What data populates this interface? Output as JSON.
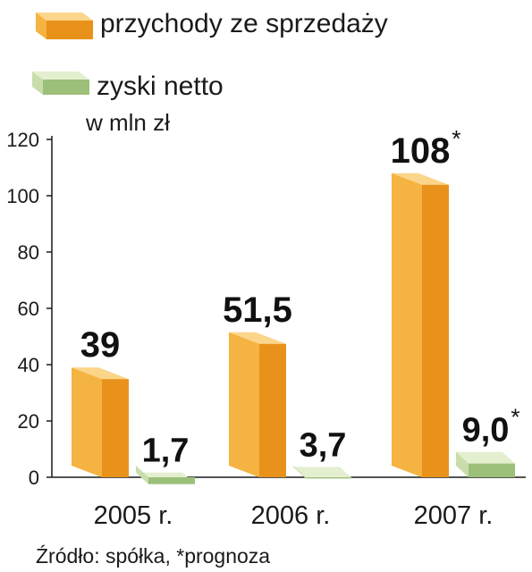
{
  "legend": [
    {
      "label": "przychody ze sprzedaży",
      "colors": {
        "top": "#fbd58a",
        "front": "#f5b342",
        "side": "#e8921c"
      }
    },
    {
      "label": "zyski netto",
      "colors": {
        "top": "#e4efd0",
        "front": "#c9ddaa",
        "side": "#9cbf7a"
      }
    }
  ],
  "unit_label": "w mln zł",
  "source": "Źródło: spółka, *prognoza",
  "chart_data": {
    "type": "bar",
    "categories": [
      "2005 r.",
      "2006 r.",
      "2007 r."
    ],
    "series": [
      {
        "name": "przychody ze sprzedaży",
        "values": [
          39,
          51.5,
          108
        ],
        "labels": [
          "39",
          "51,5",
          "108"
        ],
        "forecast": [
          false,
          false,
          true
        ]
      },
      {
        "name": "zyski netto",
        "values": [
          1.7,
          3.7,
          9.0
        ],
        "labels": [
          "1,7",
          "3,7",
          "9,0"
        ],
        "forecast": [
          false,
          false,
          true
        ]
      }
    ],
    "forecast_marker": "*",
    "ylim": [
      0,
      120
    ],
    "yticks": [
      0,
      20,
      40,
      60,
      80,
      100,
      120
    ],
    "ytick_labels": [
      "0",
      "20",
      "40",
      "60",
      "80",
      "100",
      "120"
    ],
    "grid": false,
    "legend_position": "top-left"
  }
}
